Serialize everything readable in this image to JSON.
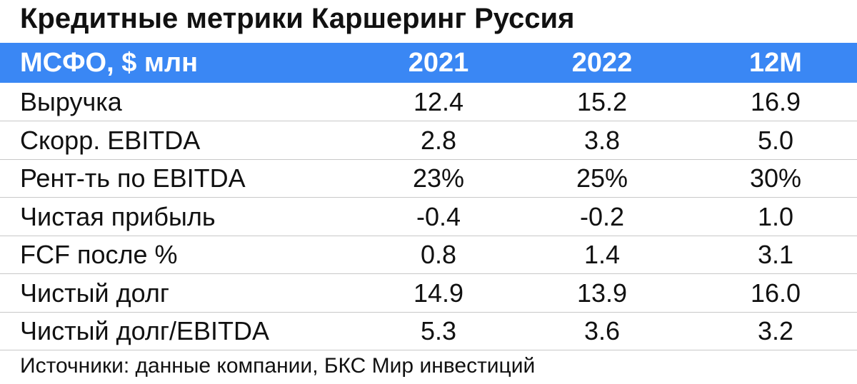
{
  "header": {
    "title": "Кредитные метрики Каршеринг Руссия"
  },
  "table": {
    "columns": [
      "МСФО, $  млн",
      "2021",
      "2022",
      "12М"
    ],
    "rows": [
      [
        "Выручка",
        "12.4",
        "15.2",
        "16.9"
      ],
      [
        "Скорр. EBITDA",
        "2.8",
        "3.8",
        "5.0"
      ],
      [
        "Рент-ть по EBITDA",
        "23%",
        "25%",
        "30%"
      ],
      [
        "Чистая прибыль",
        "-0.4",
        "-0.2",
        "1.0"
      ],
      [
        "FCF после %",
        "0.8",
        "1.4",
        "3.1"
      ],
      [
        "Чистый долг",
        "14.9",
        "13.9",
        "16.0"
      ],
      [
        "Чистый долг/EBITDA",
        "5.3",
        "3.6",
        "3.2"
      ]
    ]
  },
  "footer": {
    "source": "Источники: данные компании, БКС Мир инвестиций"
  }
}
